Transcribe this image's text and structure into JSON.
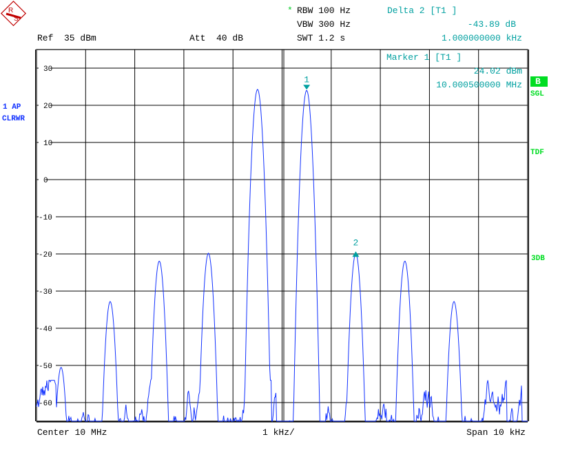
{
  "header": {
    "rbw_star": "*",
    "rbw": "RBW 100 Hz",
    "vbw": "VBW 300 Hz",
    "swt": "SWT 1.2 s",
    "ref": "Ref  35 dBm",
    "att": "Att  40 dB",
    "delta_title": "Delta 2 [T1 ]",
    "delta_level": "-43.89 dB",
    "delta_freq": "1.000000000 kHz"
  },
  "marker_box": {
    "title": "Marker 1 [T1 ]",
    "level": "24.02 dBm",
    "freq": "10.000500000 MHz"
  },
  "left_labels": {
    "trace": "1 AP",
    "mode": "CLRWR"
  },
  "right_labels": {
    "badge": "B",
    "sgl": "SGL",
    "tdf": "TDF",
    "db3": "3DB"
  },
  "footer": {
    "center": "Center 10 MHz",
    "div": "1 kHz/",
    "span": "Span 10 kHz"
  },
  "logo": "R&S",
  "colors": {
    "trace": "#1030ff",
    "marker": "#00a0a0",
    "status": "#00dd22",
    "grid": "#000000"
  },
  "chart_data": {
    "type": "line",
    "x_unit": "kHz offset from center",
    "xlim": [
      -5,
      5
    ],
    "ylim": [
      -65,
      35
    ],
    "y_ticks": [
      "30",
      "20",
      "10",
      "0",
      "-10",
      "-20",
      "-30",
      "-40",
      "-50",
      "-60"
    ],
    "y_tick_values": [
      30,
      20,
      10,
      0,
      -10,
      -20,
      -30,
      -40,
      -50,
      -60
    ],
    "grid": true,
    "peaks": [
      {
        "offset_khz": -4.5,
        "level_dbm": -50.5
      },
      {
        "offset_khz": -3.5,
        "level_dbm": -32.8
      },
      {
        "offset_khz": -2.5,
        "level_dbm": -21.9
      },
      {
        "offset_khz": -1.5,
        "level_dbm": -19.8
      },
      {
        "offset_khz": -0.5,
        "level_dbm": 24.3
      },
      {
        "offset_khz": 0.5,
        "level_dbm": 24.02
      },
      {
        "offset_khz": 1.5,
        "level_dbm": -19.87
      },
      {
        "offset_khz": 2.5,
        "level_dbm": -21.9
      },
      {
        "offset_khz": 3.5,
        "level_dbm": -32.8
      }
    ],
    "noise_floor_dbm": [
      -66,
      -54
    ],
    "markers": [
      {
        "label": "1",
        "offset_khz": 0.5,
        "level_dbm": 24.02
      },
      {
        "label": "2",
        "offset_khz": 1.5,
        "level_dbm": -19.87
      }
    ]
  }
}
